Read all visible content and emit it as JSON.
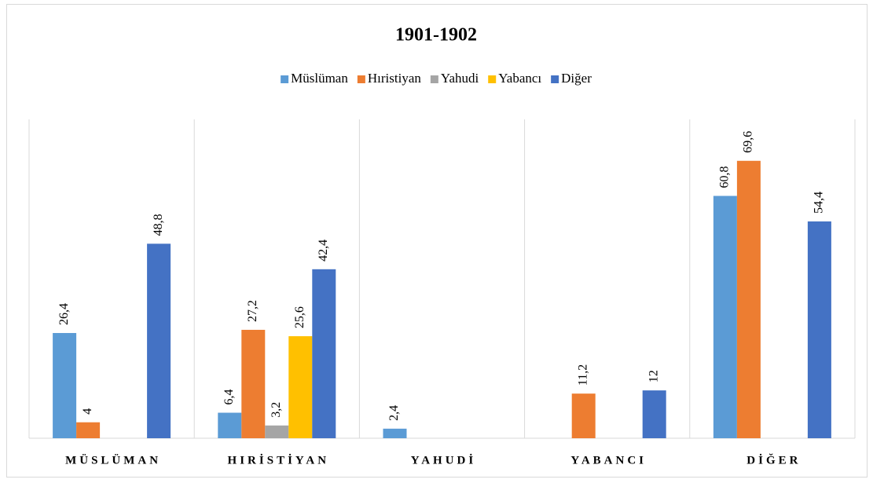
{
  "chart_data": {
    "type": "bar",
    "title": "1901-1902",
    "categories": [
      "MÜSLÜMAN",
      "HIRİSTİYAN",
      "YAHUDİ",
      "YABANCI",
      "DİĞER"
    ],
    "ylim": [
      0,
      80
    ],
    "series": [
      {
        "name": "Müslüman",
        "color": "#5b9bd5",
        "values": [
          26.4,
          6.4,
          2.4,
          null,
          60.8
        ],
        "value_labels": [
          "26,4",
          "6,4",
          "2,4",
          null,
          "60,8"
        ]
      },
      {
        "name": "Hıristiyan",
        "color": "#ed7d31",
        "values": [
          4,
          27.2,
          null,
          11.2,
          69.6
        ],
        "value_labels": [
          "4",
          "27,2",
          null,
          "11,2",
          "69,6"
        ]
      },
      {
        "name": "Yahudi",
        "color": "#a5a5a5",
        "values": [
          null,
          3.2,
          null,
          null,
          null
        ],
        "value_labels": [
          null,
          "3,2",
          null,
          null,
          null
        ]
      },
      {
        "name": "Yabancı",
        "color": "#ffc000",
        "values": [
          null,
          25.6,
          null,
          null,
          null
        ],
        "value_labels": [
          null,
          "25,6",
          null,
          null,
          null
        ]
      },
      {
        "name": "Diğer",
        "color": "#4472c4",
        "values": [
          48.8,
          42.4,
          null,
          12,
          54.4
        ],
        "value_labels": [
          "48,8",
          "42,4",
          null,
          "12",
          "54,4"
        ]
      }
    ]
  }
}
